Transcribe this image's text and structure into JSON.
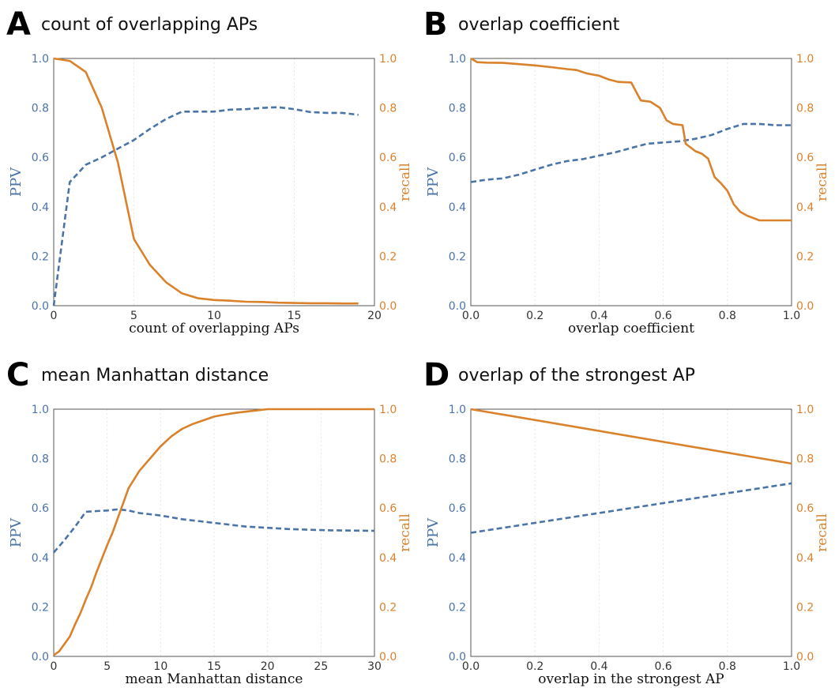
{
  "colors": {
    "ppv": "#4a74a8",
    "recall": "#d9822b",
    "axis": "#555555",
    "grid": "#e6e6e6"
  },
  "chart_data": [
    {
      "id": "A",
      "letter": "A",
      "title": "count of overlapping APs",
      "type": "line",
      "xlabel": "count of overlapping APs",
      "ylabel_left": "PPV",
      "ylabel_right": "recall",
      "xlim": [
        0,
        20
      ],
      "ylim": [
        0,
        1
      ],
      "xticks": [
        0,
        5,
        10,
        15,
        20
      ],
      "xtick_labels": [
        "0",
        "5",
        "10",
        "15",
        "20"
      ],
      "yticks": [
        0,
        0.2,
        0.4,
        0.6,
        0.8,
        1.0
      ],
      "ytick_labels": [
        "0.0",
        "0.2",
        "0.4",
        "0.6",
        "0.8",
        "1.0"
      ],
      "grid": "vertical",
      "series": [
        {
          "name": "PPV",
          "axis": "left",
          "style": "dashed",
          "x": [
            0,
            1,
            2,
            3,
            4,
            5,
            6,
            7,
            8,
            9,
            10,
            11,
            12,
            13,
            14,
            15,
            16,
            17,
            18,
            19
          ],
          "y": [
            0.0,
            0.5,
            0.57,
            0.6,
            0.635,
            0.67,
            0.715,
            0.755,
            0.785,
            0.785,
            0.785,
            0.793,
            0.795,
            0.8,
            0.803,
            0.795,
            0.783,
            0.78,
            0.78,
            0.772
          ]
        },
        {
          "name": "recall",
          "axis": "right",
          "style": "solid",
          "x": [
            0,
            1,
            2,
            3,
            4,
            5,
            6,
            7,
            8,
            9,
            10,
            11,
            12,
            13,
            14,
            15,
            16,
            17,
            18,
            19
          ],
          "y": [
            1.0,
            0.99,
            0.945,
            0.8,
            0.58,
            0.27,
            0.165,
            0.095,
            0.05,
            0.03,
            0.023,
            0.02,
            0.016,
            0.015,
            0.012,
            0.011,
            0.01,
            0.01,
            0.009,
            0.009
          ]
        }
      ]
    },
    {
      "id": "B",
      "letter": "B",
      "title": "overlap coefficient",
      "type": "line",
      "xlabel": "overlap coefficient",
      "ylabel_left": "PPV",
      "ylabel_right": "recall",
      "xlim": [
        0,
        1
      ],
      "ylim": [
        0,
        1
      ],
      "xticks": [
        0,
        0.2,
        0.4,
        0.6,
        0.8,
        1.0
      ],
      "xtick_labels": [
        "0.0",
        "0.2",
        "0.4",
        "0.6",
        "0.8",
        "1.0"
      ],
      "yticks": [
        0,
        0.2,
        0.4,
        0.6,
        0.8,
        1.0
      ],
      "ytick_labels": [
        "0.0",
        "0.2",
        "0.4",
        "0.6",
        "0.8",
        "1.0"
      ],
      "grid": "vertical",
      "series": [
        {
          "name": "PPV",
          "axis": "left",
          "style": "dashed",
          "x": [
            0,
            0.05,
            0.1,
            0.15,
            0.2,
            0.25,
            0.3,
            0.35,
            0.4,
            0.45,
            0.5,
            0.55,
            0.6,
            0.65,
            0.7,
            0.75,
            0.8,
            0.85,
            0.9,
            0.95,
            1.0
          ],
          "y": [
            0.5,
            0.51,
            0.515,
            0.53,
            0.55,
            0.57,
            0.585,
            0.593,
            0.607,
            0.62,
            0.638,
            0.655,
            0.66,
            0.665,
            0.675,
            0.69,
            0.715,
            0.735,
            0.735,
            0.73,
            0.73
          ]
        },
        {
          "name": "recall",
          "axis": "right",
          "style": "solid",
          "x": [
            0,
            0.02,
            0.05,
            0.1,
            0.15,
            0.2,
            0.25,
            0.3,
            0.33,
            0.36,
            0.4,
            0.43,
            0.46,
            0.5,
            0.53,
            0.56,
            0.59,
            0.61,
            0.63,
            0.66,
            0.67,
            0.7,
            0.72,
            0.74,
            0.76,
            0.78,
            0.8,
            0.82,
            0.84,
            0.86,
            0.88,
            0.9,
            0.95,
            1.0
          ],
          "y": [
            1.0,
            0.985,
            0.983,
            0.982,
            0.977,
            0.972,
            0.965,
            0.957,
            0.953,
            0.94,
            0.93,
            0.915,
            0.905,
            0.903,
            0.83,
            0.825,
            0.8,
            0.75,
            0.735,
            0.73,
            0.655,
            0.625,
            0.615,
            0.595,
            0.52,
            0.495,
            0.465,
            0.41,
            0.38,
            0.365,
            0.355,
            0.345,
            0.345,
            0.345
          ]
        }
      ]
    },
    {
      "id": "C",
      "letter": "C",
      "title": "mean Manhattan distance",
      "type": "line",
      "xlabel": "mean Manhattan distance",
      "ylabel_left": "PPV",
      "ylabel_right": "recall",
      "xlim": [
        0,
        30
      ],
      "ylim": [
        0,
        1
      ],
      "xticks": [
        0,
        5,
        10,
        15,
        20,
        25,
        30
      ],
      "xtick_labels": [
        "0",
        "5",
        "10",
        "15",
        "20",
        "25",
        "30"
      ],
      "yticks": [
        0,
        0.2,
        0.4,
        0.6,
        0.8,
        1.0
      ],
      "ytick_labels": [
        "0.0",
        "0.2",
        "0.4",
        "0.6",
        "0.8",
        "1.0"
      ],
      "grid": "vertical",
      "series": [
        {
          "name": "PPV",
          "axis": "left",
          "style": "dashed",
          "x": [
            0,
            1,
            2,
            3,
            4,
            5,
            6,
            7,
            8,
            9,
            10,
            12,
            14,
            16,
            18,
            20,
            22,
            24,
            26,
            28,
            30
          ],
          "y": [
            0.42,
            0.47,
            0.525,
            0.585,
            0.588,
            0.59,
            0.595,
            0.59,
            0.58,
            0.575,
            0.57,
            0.555,
            0.545,
            0.535,
            0.525,
            0.52,
            0.515,
            0.512,
            0.51,
            0.509,
            0.508
          ]
        },
        {
          "name": "recall",
          "axis": "right",
          "style": "solid",
          "x": [
            0,
            0.5,
            1,
            1.5,
            2,
            2.5,
            3,
            3.5,
            4,
            4.5,
            5,
            5.5,
            6,
            6.5,
            7,
            8,
            9,
            10,
            11,
            12,
            13,
            14,
            15,
            16,
            17,
            18,
            19,
            20,
            22,
            24,
            26,
            28,
            30
          ],
          "y": [
            0.005,
            0.02,
            0.05,
            0.08,
            0.13,
            0.175,
            0.23,
            0.28,
            0.34,
            0.395,
            0.45,
            0.5,
            0.56,
            0.62,
            0.68,
            0.75,
            0.8,
            0.85,
            0.89,
            0.92,
            0.94,
            0.955,
            0.97,
            0.978,
            0.985,
            0.99,
            0.995,
            1.0,
            1.0,
            1.0,
            1.0,
            1.0,
            1.0
          ]
        }
      ]
    },
    {
      "id": "D",
      "letter": "D",
      "title": "overlap of the strongest AP",
      "type": "line",
      "xlabel": "overlap in the strongest AP",
      "ylabel_left": "PPV",
      "ylabel_right": "recall",
      "xlim": [
        0,
        1
      ],
      "ylim": [
        0,
        1
      ],
      "xticks": [
        0,
        0.2,
        0.4,
        0.6,
        0.8,
        1.0
      ],
      "xtick_labels": [
        "0.0",
        "0.2",
        "0.4",
        "0.6",
        "0.8",
        "1.0"
      ],
      "yticks": [
        0,
        0.2,
        0.4,
        0.6,
        0.8,
        1.0
      ],
      "ytick_labels": [
        "0.0",
        "0.2",
        "0.4",
        "0.6",
        "0.8",
        "1.0"
      ],
      "grid": "vertical",
      "series": [
        {
          "name": "PPV",
          "axis": "left",
          "style": "dashed",
          "x": [
            0,
            1.0
          ],
          "y": [
            0.5,
            0.7
          ]
        },
        {
          "name": "recall",
          "axis": "right",
          "style": "solid",
          "x": [
            0,
            1.0
          ],
          "y": [
            1.0,
            0.78
          ]
        }
      ]
    }
  ]
}
